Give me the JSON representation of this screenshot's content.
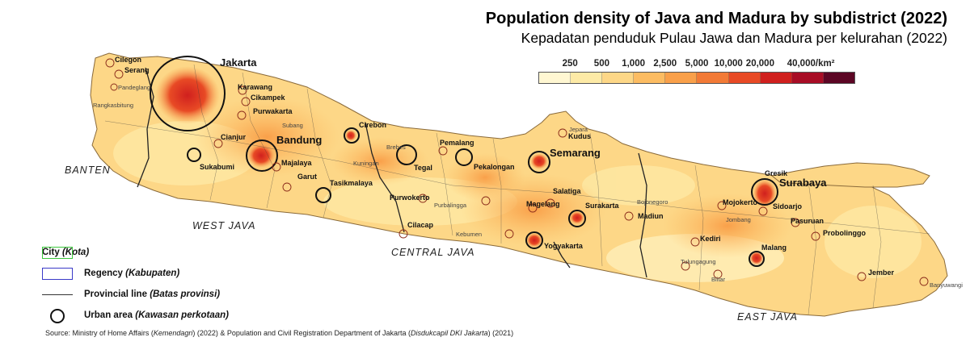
{
  "title": "Population density of Java and Madura by subdistrict (2022)",
  "subtitle": "Kepadatan penduduk Pulau Jawa dan Madura per kelurahan (2022)",
  "scale": {
    "labels": [
      "250",
      "500",
      "1,000",
      "2,500",
      "5,000",
      "10,000",
      "20,000",
      "40,000/km²"
    ],
    "colors": [
      "#fff7d2",
      "#fdeaa6",
      "#fdd787",
      "#fcbc62",
      "#f9a04a",
      "#f27a36",
      "#e84a25",
      "#d0201e",
      "#a80d25",
      "#5c0624"
    ]
  },
  "legend": {
    "city": "City",
    "city_local": "(Kota)",
    "regency": "Regency",
    "regency_local": "(Kabupaten)",
    "provincial": "Provincial line",
    "provincial_local": "(Batas provinsi)",
    "urban": "Urban area",
    "urban_local": "(Kawasan perkotaan)"
  },
  "source": {
    "prefix": "Source: Ministry of Home Affairs (",
    "a": "Kemendagri",
    "mid": ") (2022) & Population and Civil Registration Department of Jakarta (",
    "b": "Disdukcapil DKI Jakarta",
    "suffix": ") (2021)"
  },
  "provinces": {
    "banten": "BANTEN",
    "west_java": "WEST JAVA",
    "central_java": "CENTRAL JAVA",
    "east_java": "EAST JAVA"
  },
  "cities": {
    "jakarta": "Jakarta",
    "bandung": "Bandung",
    "semarang": "Semarang",
    "surabaya": "Surabaya",
    "cilegon": "Cilegon",
    "serang": "Serang",
    "pandeglang": "Pandeglang",
    "rangkasbitung": "Rangkasbitung",
    "karawang": "Karawang",
    "cikampek": "Cikampek",
    "purwakarta": "Purwakarta",
    "subang": "Subang",
    "cianjur": "Cianjur",
    "sukabumi": "Sukabumi",
    "majalaya": "Majalaya",
    "garut": "Garut",
    "tasikmalaya": "Tasikmalaya",
    "cirebon": "Cirebon",
    "tegal": "Tegal",
    "pemalang": "Pemalang",
    "pekalongan": "Pekalongan",
    "purwokerto": "Purwokerto",
    "cilacap": "Cilacap",
    "kudus": "Kudus",
    "jepara": "Jepara",
    "salatiga": "Salatiga",
    "magelang": "Magelang",
    "surakarta": "Surakarta",
    "yogyakarta": "Yogyakarta",
    "madiun": "Madiun",
    "kediri": "Kediri",
    "mojokerto": "Mojokerto",
    "gresik": "Gresik",
    "sidoarjo": "Sidoarjo",
    "pasuruan": "Pasuruan",
    "probolinggo": "Probolinggo",
    "malang": "Malang",
    "jember": "Jember",
    "banyuwangi": "Banyuwangi",
    "blitar": "Blitar",
    "tulungagung": "Tulungagung",
    "jombang": "Jombang",
    "kuningan": "Kuningan",
    "brebes": "Brebes",
    "kebumen": "Kebumen",
    "purbalingga": "Purbalingga",
    "bojonegoro": "Bojonegoro"
  }
}
